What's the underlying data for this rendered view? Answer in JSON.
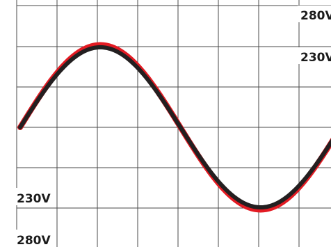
{
  "chart_data": {
    "type": "line",
    "title": "",
    "xlabel": "",
    "ylabel": "",
    "grid": true,
    "x_domain": [
      0,
      1
    ],
    "ylim": [
      -1.2,
      1.2
    ],
    "y_tick_labels": {
      "top_upper": "280V",
      "top_lower": "230V",
      "bottom_upper": "230V",
      "bottom_lower": "280V"
    },
    "series": [
      {
        "color": "#e31b23",
        "amplitude": 1.03,
        "stroke": "thick",
        "samples": 240
      },
      {
        "color": "#231f20",
        "amplitude": 1.0,
        "stroke": "medium",
        "samples": 240
      }
    ]
  }
}
